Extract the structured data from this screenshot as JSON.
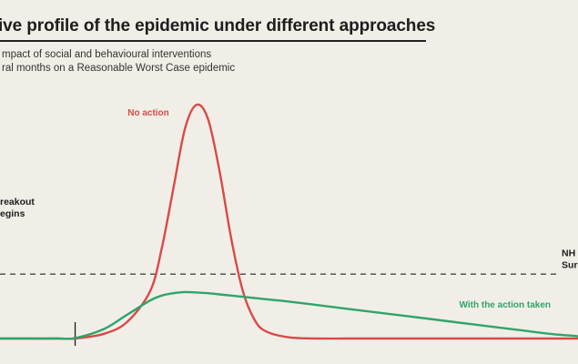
{
  "title": "ive profile of the epidemic under different approaches",
  "subtitle_lines": [
    "mpact of social and behavioural interventions",
    "ral months on a Reasonable Worst Case epidemic"
  ],
  "chart_data": {
    "type": "line",
    "title": "ive profile of the epidemic under different approaches",
    "xlabel": "",
    "ylabel": "",
    "xlim": [
      0,
      100
    ],
    "ylim": [
      0,
      100
    ],
    "grid": false,
    "x": [
      0,
      5,
      10,
      13,
      18,
      22,
      26,
      28,
      30,
      32,
      34,
      36,
      38,
      40,
      42,
      44,
      46,
      50,
      55,
      60,
      65,
      70,
      75,
      80,
      85,
      90,
      95,
      100
    ],
    "series": [
      {
        "name": "No action",
        "color": "#d94a45",
        "values": [
          0,
          0,
          0,
          0,
          2,
          7,
          20,
          38,
          63,
          88,
          98,
          92,
          70,
          42,
          20,
          8,
          3,
          0.5,
          0,
          0,
          0,
          0,
          0,
          0,
          0,
          0,
          0,
          0
        ]
      },
      {
        "name": "With the action taken",
        "color": "#2fa56b",
        "values": [
          0,
          0,
          0,
          0.2,
          4,
          10,
          16,
          18,
          19,
          19.5,
          19.3,
          19,
          18.5,
          18,
          17.5,
          17,
          16.5,
          15.5,
          14,
          12.5,
          11,
          9.5,
          8,
          6.5,
          5,
          3.5,
          2,
          1
        ]
      }
    ],
    "reference_lines": [
      {
        "label": "NH\nSur",
        "y": 27,
        "style": "dashed",
        "color": "#555555"
      }
    ],
    "markers": [
      {
        "label": "reakout\negins",
        "x": 13
      }
    ]
  }
}
